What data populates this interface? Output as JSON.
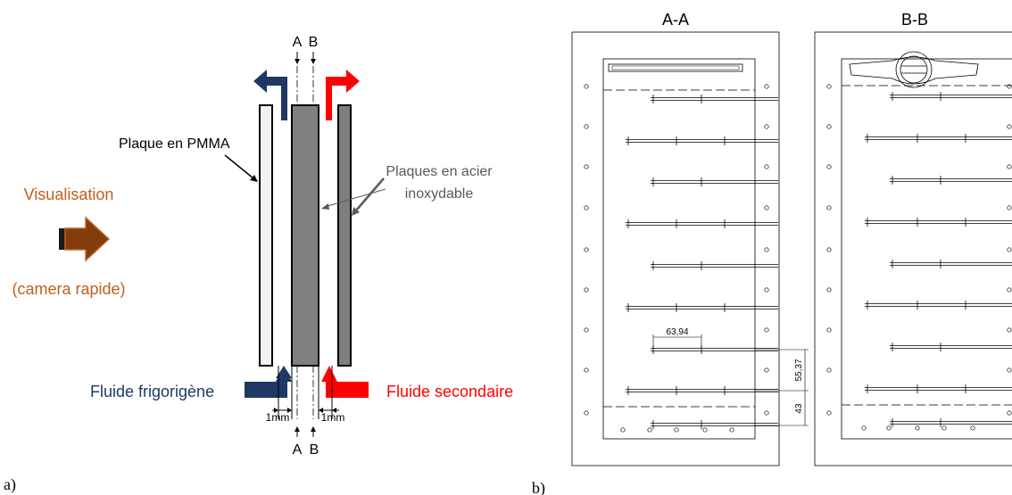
{
  "panel_a": {
    "panel_label": "a)",
    "section_a_top": "A",
    "section_b_top": "B",
    "section_a_bottom": "A",
    "section_b_bottom": "B",
    "visualisation_label": "Visualisation",
    "camera_label": "(camera rapide)",
    "pmma_label": "Plaque en PMMA",
    "steel_label_line1": "Plaques en acier",
    "steel_label_line2": "inoxydable",
    "refrigerant_label": "Fluide frigorigène",
    "secondary_label": "Fluide secondaire",
    "gap_left_label": "1mm",
    "gap_right_label": "1mm",
    "colors": {
      "refrigerant": "#1f3864",
      "secondary": "#ff0000",
      "visualisation": "#c0601a",
      "camera_arrow": "#843c0c",
      "steel": "#7f7f7f",
      "pmma": "#f2f2f2"
    }
  },
  "panel_b": {
    "panel_label": "b)",
    "section_aa_title": "A-A",
    "section_bb_title": "B-B",
    "dim_horizontal": "63,94",
    "dim_vertical_1": "55,37",
    "dim_vertical_2": "43"
  }
}
